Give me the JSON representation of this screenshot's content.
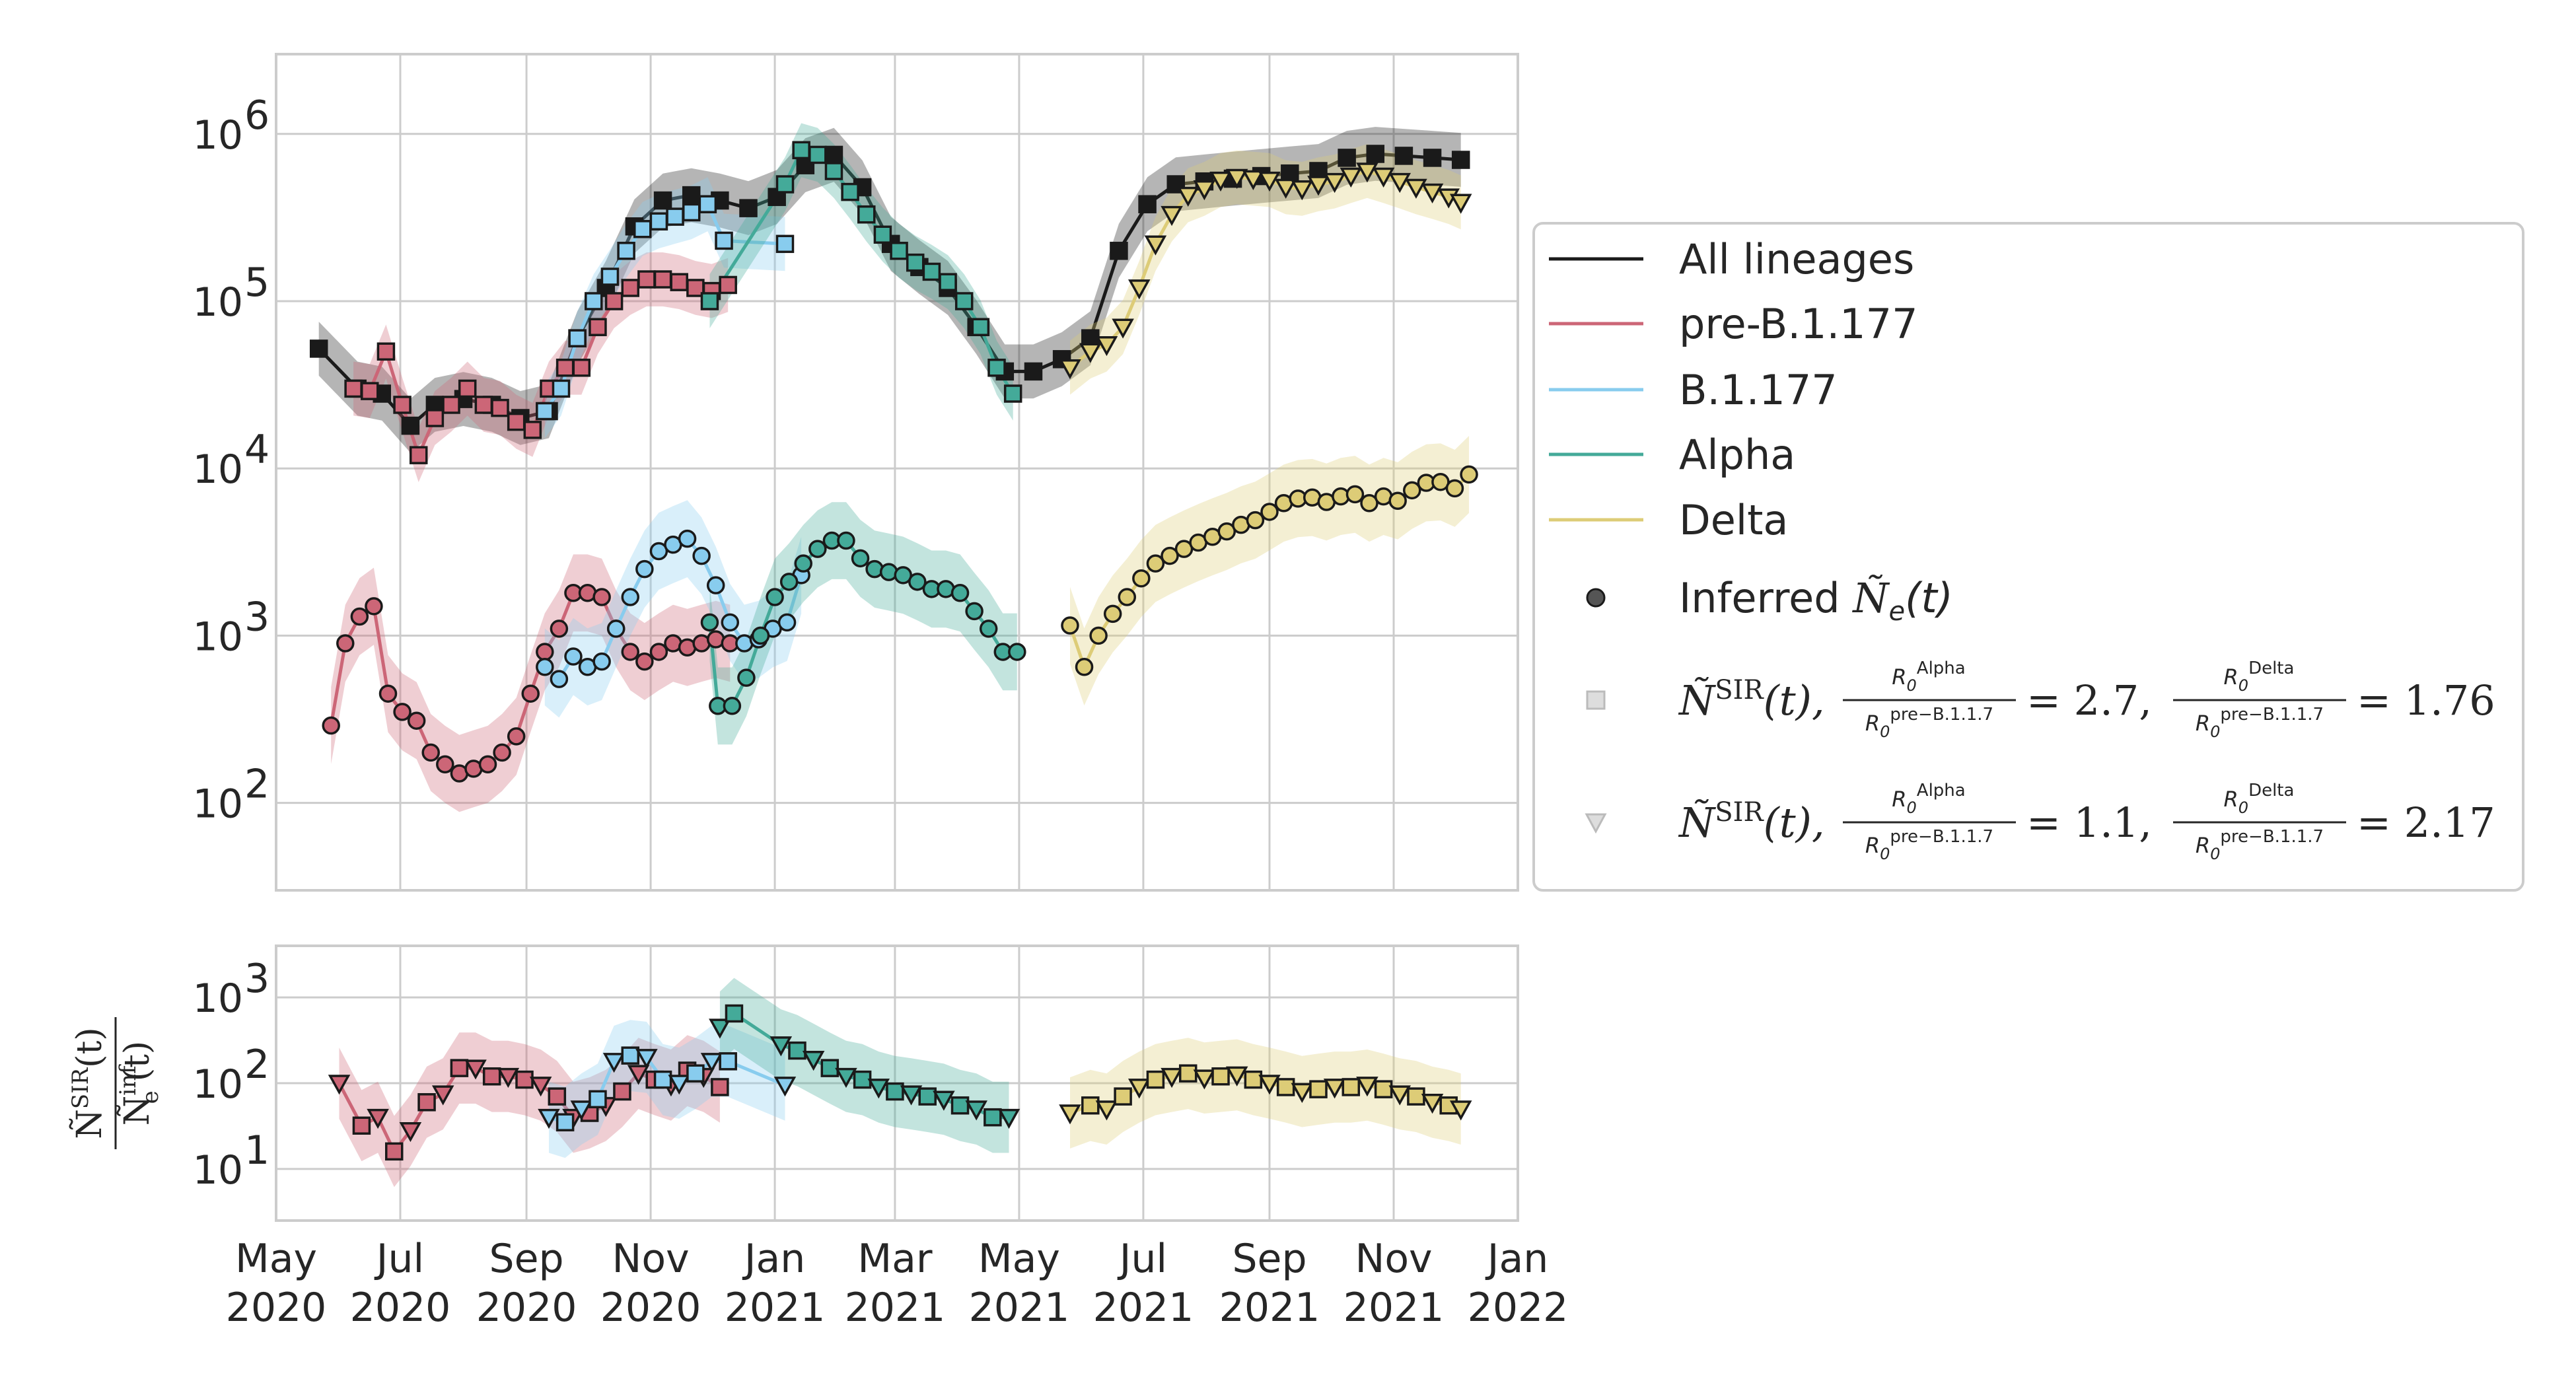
{
  "chart_data": [
    {
      "type": "line",
      "panel": "top",
      "yscale": "log",
      "ylim": [
        30,
        3000000
      ],
      "xlim": [
        "2020-05-01",
        "2022-01-01"
      ],
      "yticks": [
        {
          "value": 100,
          "base": "10",
          "exp": "2"
        },
        {
          "value": 1000,
          "base": "10",
          "exp": "3"
        },
        {
          "value": 10000,
          "base": "10",
          "exp": "4"
        },
        {
          "value": 100000,
          "base": "10",
          "exp": "5"
        },
        {
          "value": 1000000,
          "base": "10",
          "exp": "6"
        }
      ],
      "grid": true,
      "series": [
        {
          "name": "All lineages",
          "color": "#1a1a1a",
          "marker": "square",
          "kind": "N_SIR",
          "x": [
            "2020-05-22",
            "2020-06-10",
            "2020-06-22",
            "2020-07-06",
            "2020-07-18",
            "2020-08-01",
            "2020-08-15",
            "2020-08-29",
            "2020-09-12",
            "2020-09-26",
            "2020-10-10",
            "2020-10-24",
            "2020-11-07",
            "2020-11-21",
            "2020-12-05",
            "2020-12-19",
            "2021-01-02",
            "2021-01-16",
            "2021-01-30",
            "2021-02-13",
            "2021-02-27",
            "2021-03-13",
            "2021-03-27",
            "2021-04-10",
            "2021-04-24",
            "2021-05-08",
            "2021-05-22",
            "2021-06-05",
            "2021-06-19",
            "2021-07-03",
            "2021-07-17",
            "2021-07-31",
            "2021-08-14",
            "2021-08-28",
            "2021-09-11",
            "2021-09-25",
            "2021-10-09",
            "2021-10-23",
            "2021-11-06",
            "2021-11-20",
            "2021-12-04"
          ],
          "y": [
            52000,
            30000,
            28000,
            18000,
            24000,
            26000,
            24000,
            20000,
            22000,
            60000,
            120000,
            280000,
            400000,
            430000,
            400000,
            360000,
            420000,
            650000,
            750000,
            480000,
            220000,
            160000,
            120000,
            70000,
            38000,
            38000,
            45000,
            60000,
            200000,
            380000,
            500000,
            520000,
            540000,
            560000,
            580000,
            600000,
            720000,
            760000,
            740000,
            720000,
            700000
          ]
        },
        {
          "name": "pre-B.1.177",
          "color": "#cc6677",
          "marker": "square",
          "kind": "N_SIR",
          "x": [
            "2020-06-08",
            "2020-06-16",
            "2020-06-24",
            "2020-07-02",
            "2020-07-10",
            "2020-07-18",
            "2020-07-26",
            "2020-08-03",
            "2020-08-11",
            "2020-08-19",
            "2020-08-27",
            "2020-09-04",
            "2020-09-12",
            "2020-09-20",
            "2020-09-28",
            "2020-10-06",
            "2020-10-14",
            "2020-10-22",
            "2020-10-30",
            "2020-11-07",
            "2020-11-15",
            "2020-11-23",
            "2020-12-01",
            "2020-12-09"
          ],
          "y": [
            30000,
            29000,
            50000,
            24000,
            12000,
            20000,
            24000,
            30000,
            24000,
            23000,
            19000,
            17000,
            30000,
            40000,
            40000,
            70000,
            100000,
            120000,
            135000,
            135000,
            130000,
            120000,
            115000,
            125000
          ]
        },
        {
          "name": "B.1.177",
          "color": "#88ccee",
          "marker": "square",
          "kind": "N_SIR",
          "x": [
            "2020-09-10",
            "2020-09-18",
            "2020-09-26",
            "2020-10-04",
            "2020-10-12",
            "2020-10-20",
            "2020-10-28",
            "2020-11-05",
            "2020-11-13",
            "2020-11-21",
            "2020-11-29",
            "2020-12-07",
            "2021-01-06"
          ],
          "y": [
            22000,
            30000,
            60000,
            100000,
            140000,
            200000,
            270000,
            300000,
            320000,
            340000,
            380000,
            230000,
            220000
          ]
        },
        {
          "name": "Alpha",
          "color": "#44aa99",
          "marker": "square",
          "kind": "N_SIR",
          "x": [
            "2020-11-30",
            "2021-01-06",
            "2021-01-14",
            "2021-01-22",
            "2021-01-30",
            "2021-02-07",
            "2021-02-15",
            "2021-02-23",
            "2021-03-03",
            "2021-03-11",
            "2021-03-19",
            "2021-03-27",
            "2021-04-04",
            "2021-04-12",
            "2021-04-20",
            "2021-04-28"
          ],
          "y": [
            100000,
            500000,
            800000,
            750000,
            600000,
            450000,
            330000,
            250000,
            200000,
            170000,
            150000,
            130000,
            100000,
            70000,
            40000,
            28000
          ]
        },
        {
          "name": "Delta",
          "color": "#ddcc77",
          "marker": "triangle",
          "kind": "N_SIR",
          "x": [
            "2021-05-26",
            "2021-06-05",
            "2021-06-13",
            "2021-06-21",
            "2021-06-29",
            "2021-07-07",
            "2021-07-15",
            "2021-07-23",
            "2021-07-31",
            "2021-08-08",
            "2021-08-16",
            "2021-08-24",
            "2021-09-01",
            "2021-09-09",
            "2021-09-17",
            "2021-09-25",
            "2021-10-03",
            "2021-10-11",
            "2021-10-19",
            "2021-10-27",
            "2021-11-04",
            "2021-11-12",
            "2021-11-20",
            "2021-11-28",
            "2021-12-04"
          ],
          "y": [
            40000,
            50000,
            55000,
            70000,
            120000,
            220000,
            330000,
            430000,
            470000,
            530000,
            550000,
            540000,
            530000,
            480000,
            470000,
            500000,
            520000,
            560000,
            600000,
            560000,
            520000,
            480000,
            450000,
            420000,
            390000
          ]
        },
        {
          "name": "pre-B.1.177",
          "color": "#cc6677",
          "marker": "circle",
          "kind": "Ne",
          "x": [
            "2020-05-28",
            "2020-06-04",
            "2020-06-11",
            "2020-06-18",
            "2020-06-25",
            "2020-07-02",
            "2020-07-09",
            "2020-07-16",
            "2020-07-23",
            "2020-07-30",
            "2020-08-06",
            "2020-08-13",
            "2020-08-20",
            "2020-08-27",
            "2020-09-03",
            "2020-09-10",
            "2020-09-17",
            "2020-09-24",
            "2020-10-01",
            "2020-10-08",
            "2020-10-15",
            "2020-10-22",
            "2020-10-29",
            "2020-11-05",
            "2020-11-12",
            "2020-11-19",
            "2020-11-26",
            "2020-12-03",
            "2020-12-10"
          ],
          "y": [
            290,
            900,
            1300,
            1500,
            450,
            350,
            310,
            200,
            170,
            150,
            160,
            170,
            200,
            250,
            450,
            800,
            1100,
            1800,
            1800,
            1700,
            1100,
            800,
            700,
            800,
            900,
            850,
            900,
            950,
            900
          ]
        },
        {
          "name": "B.1.177",
          "color": "#88ccee",
          "marker": "circle",
          "kind": "Ne",
          "x": [
            "2020-09-10",
            "2020-09-17",
            "2020-09-24",
            "2020-10-01",
            "2020-10-08",
            "2020-10-15",
            "2020-10-22",
            "2020-10-29",
            "2020-11-05",
            "2020-11-12",
            "2020-11-19",
            "2020-11-26",
            "2020-12-03",
            "2020-12-10",
            "2020-12-17",
            "2020-12-24",
            "2020-12-31",
            "2021-01-07",
            "2021-01-14"
          ],
          "y": [
            650,
            550,
            750,
            650,
            700,
            1100,
            1700,
            2500,
            3200,
            3500,
            3800,
            3000,
            2000,
            1200,
            900,
            950,
            1100,
            1200,
            2300
          ]
        },
        {
          "name": "Alpha",
          "color": "#44aa99",
          "marker": "circle",
          "kind": "Ne",
          "x": [
            "2020-11-30",
            "2020-12-04",
            "2020-12-11",
            "2020-12-18",
            "2020-12-25",
            "2021-01-01",
            "2021-01-08",
            "2021-01-15",
            "2021-01-22",
            "2021-01-29",
            "2021-02-05",
            "2021-02-12",
            "2021-02-19",
            "2021-02-26",
            "2021-03-05",
            "2021-03-12",
            "2021-03-19",
            "2021-03-26",
            "2021-04-02",
            "2021-04-09",
            "2021-04-16",
            "2021-04-23",
            "2021-04-30"
          ],
          "y": [
            1200,
            380,
            380,
            560,
            1000,
            1700,
            2100,
            2700,
            3300,
            3700,
            3700,
            2900,
            2500,
            2400,
            2300,
            2100,
            1900,
            1900,
            1800,
            1400,
            1100,
            800,
            800
          ]
        },
        {
          "name": "Delta",
          "color": "#ddcc77",
          "marker": "circle",
          "kind": "Ne",
          "x": [
            "2021-05-26",
            "2021-06-02",
            "2021-06-09",
            "2021-06-16",
            "2021-06-23",
            "2021-06-30",
            "2021-07-07",
            "2021-07-14",
            "2021-07-21",
            "2021-07-28",
            "2021-08-04",
            "2021-08-11",
            "2021-08-18",
            "2021-08-25",
            "2021-09-01",
            "2021-09-08",
            "2021-09-15",
            "2021-09-22",
            "2021-09-29",
            "2021-10-06",
            "2021-10-13",
            "2021-10-20",
            "2021-10-27",
            "2021-11-03",
            "2021-11-10",
            "2021-11-17",
            "2021-11-24",
            "2021-12-01",
            "2021-12-08"
          ],
          "y": [
            1150,
            650,
            1000,
            1350,
            1700,
            2200,
            2700,
            3000,
            3300,
            3600,
            3900,
            4200,
            4600,
            4900,
            5500,
            6200,
            6600,
            6700,
            6300,
            6800,
            7000,
            6200,
            6800,
            6400,
            7400,
            8200,
            8300,
            7600,
            9200
          ]
        }
      ]
    },
    {
      "type": "line",
      "panel": "bottom",
      "yscale": "log",
      "ylim": [
        2.5,
        4000
      ],
      "xlim": [
        "2020-05-01",
        "2022-01-01"
      ],
      "yticks": [
        {
          "value": 10,
          "base": "10",
          "exp": "1"
        },
        {
          "value": 100,
          "base": "10",
          "exp": "2"
        },
        {
          "value": 1000,
          "base": "10",
          "exp": "3"
        }
      ],
      "xticks": [
        {
          "date": "2020-05-01",
          "month": "May",
          "year": "2020"
        },
        {
          "date": "2020-07-01",
          "month": "Jul",
          "year": "2020"
        },
        {
          "date": "2020-09-01",
          "month": "Sep",
          "year": "2020"
        },
        {
          "date": "2020-11-01",
          "month": "Nov",
          "year": "2020"
        },
        {
          "date": "2021-01-01",
          "month": "Jan",
          "year": "2021"
        },
        {
          "date": "2021-03-01",
          "month": "Mar",
          "year": "2021"
        },
        {
          "date": "2021-05-01",
          "month": "May",
          "year": "2021"
        },
        {
          "date": "2021-07-01",
          "month": "Jul",
          "year": "2021"
        },
        {
          "date": "2021-09-01",
          "month": "Sep",
          "year": "2021"
        },
        {
          "date": "2021-11-01",
          "month": "Nov",
          "year": "2021"
        },
        {
          "date": "2022-01-01",
          "month": "Jan",
          "year": "2022"
        }
      ],
      "grid": true,
      "series": [
        {
          "name": "pre-B.1.177",
          "color": "#cc6677",
          "x": [
            "2020-06-01",
            "2020-06-12",
            "2020-06-20",
            "2020-06-28",
            "2020-07-06",
            "2020-07-14",
            "2020-07-22",
            "2020-07-30",
            "2020-08-07",
            "2020-08-15",
            "2020-08-23",
            "2020-08-31",
            "2020-09-08",
            "2020-09-16",
            "2020-09-24",
            "2020-10-02",
            "2020-10-10",
            "2020-10-18",
            "2020-10-26",
            "2020-11-03",
            "2020-11-11",
            "2020-11-19",
            "2020-11-27",
            "2020-12-05"
          ],
          "y": [
            100,
            32,
            40,
            16,
            28,
            60,
            75,
            150,
            150,
            120,
            120,
            110,
            95,
            70,
            40,
            45,
            55,
            80,
            130,
            110,
            95,
            140,
            120,
            90
          ]
        },
        {
          "name": "B.1.177",
          "color": "#88ccee",
          "x": [
            "2020-09-12",
            "2020-09-20",
            "2020-09-28",
            "2020-10-06",
            "2020-10-14",
            "2020-10-22",
            "2020-10-30",
            "2020-11-07",
            "2020-11-15",
            "2020-11-23",
            "2020-12-01",
            "2020-12-09",
            "2021-01-06"
          ],
          "y": [
            40,
            35,
            50,
            65,
            180,
            210,
            200,
            110,
            100,
            130,
            180,
            180,
            95
          ]
        },
        {
          "name": "Alpha",
          "color": "#44aa99",
          "x": [
            "2020-12-05",
            "2020-12-12",
            "2021-01-04",
            "2021-01-12",
            "2021-01-20",
            "2021-01-28",
            "2021-02-05",
            "2021-02-13",
            "2021-02-21",
            "2021-03-01",
            "2021-03-09",
            "2021-03-17",
            "2021-03-25",
            "2021-04-02",
            "2021-04-10",
            "2021-04-18",
            "2021-04-26"
          ],
          "y": [
            450,
            650,
            280,
            240,
            190,
            150,
            120,
            110,
            90,
            80,
            75,
            70,
            65,
            55,
            50,
            40,
            40
          ]
        },
        {
          "name": "Delta",
          "color": "#ddcc77",
          "x": [
            "2021-05-26",
            "2021-06-05",
            "2021-06-13",
            "2021-06-21",
            "2021-06-29",
            "2021-07-07",
            "2021-07-15",
            "2021-07-23",
            "2021-07-31",
            "2021-08-08",
            "2021-08-16",
            "2021-08-24",
            "2021-09-01",
            "2021-09-09",
            "2021-09-17",
            "2021-09-25",
            "2021-10-03",
            "2021-10-11",
            "2021-10-19",
            "2021-10-27",
            "2021-11-04",
            "2021-11-12",
            "2021-11-20",
            "2021-11-28",
            "2021-12-04"
          ],
          "y": [
            45,
            55,
            50,
            70,
            90,
            110,
            120,
            130,
            115,
            120,
            125,
            110,
            100,
            90,
            80,
            85,
            90,
            90,
            95,
            85,
            75,
            70,
            60,
            55,
            50
          ]
        }
      ]
    }
  ],
  "legend": {
    "items": [
      {
        "label": "All lineages",
        "color": "#1a1a1a",
        "symbol": "line"
      },
      {
        "label": "pre-B.1.177",
        "color": "#cc6677",
        "symbol": "line"
      },
      {
        "label": "B.1.177",
        "color": "#88ccee",
        "symbol": "line"
      },
      {
        "label": "Alpha",
        "color": "#44aa99",
        "symbol": "line"
      },
      {
        "label": "Delta",
        "color": "#ddcc77",
        "symbol": "line"
      }
    ],
    "inferred_label": "Inferred",
    "scenario1": {
      "ratio_alpha": "2.7",
      "ratio_delta": "1.76"
    },
    "scenario2": {
      "ratio_alpha": "1.1",
      "ratio_delta": "2.17"
    }
  }
}
